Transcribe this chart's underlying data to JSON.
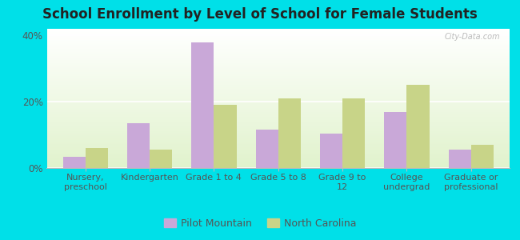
{
  "title": "School Enrollment by Level of School for Female Students",
  "categories": [
    "Nursery,\npreschool",
    "Kindergarten",
    "Grade 1 to 4",
    "Grade 5 to 8",
    "Grade 9 to\n12",
    "College\nundergrad",
    "Graduate or\nprofessional"
  ],
  "pilot_mountain": [
    3.5,
    13.5,
    38.0,
    11.5,
    10.5,
    17.0,
    5.5
  ],
  "north_carolina": [
    6.0,
    5.5,
    19.0,
    21.0,
    21.0,
    25.0,
    7.0
  ],
  "bar_color_pm": "#c9a8d8",
  "bar_color_nc": "#c8d488",
  "ylim": [
    0,
    42
  ],
  "yticks": [
    0,
    20,
    40
  ],
  "ytick_labels": [
    "0%",
    "20%",
    "40%"
  ],
  "background_outer": "#00e0e8",
  "legend_labels": [
    "Pilot Mountain",
    "North Carolina"
  ],
  "watermark": "City-Data.com",
  "title_fontsize": 12,
  "label_fontsize": 8,
  "tick_fontsize": 8.5
}
